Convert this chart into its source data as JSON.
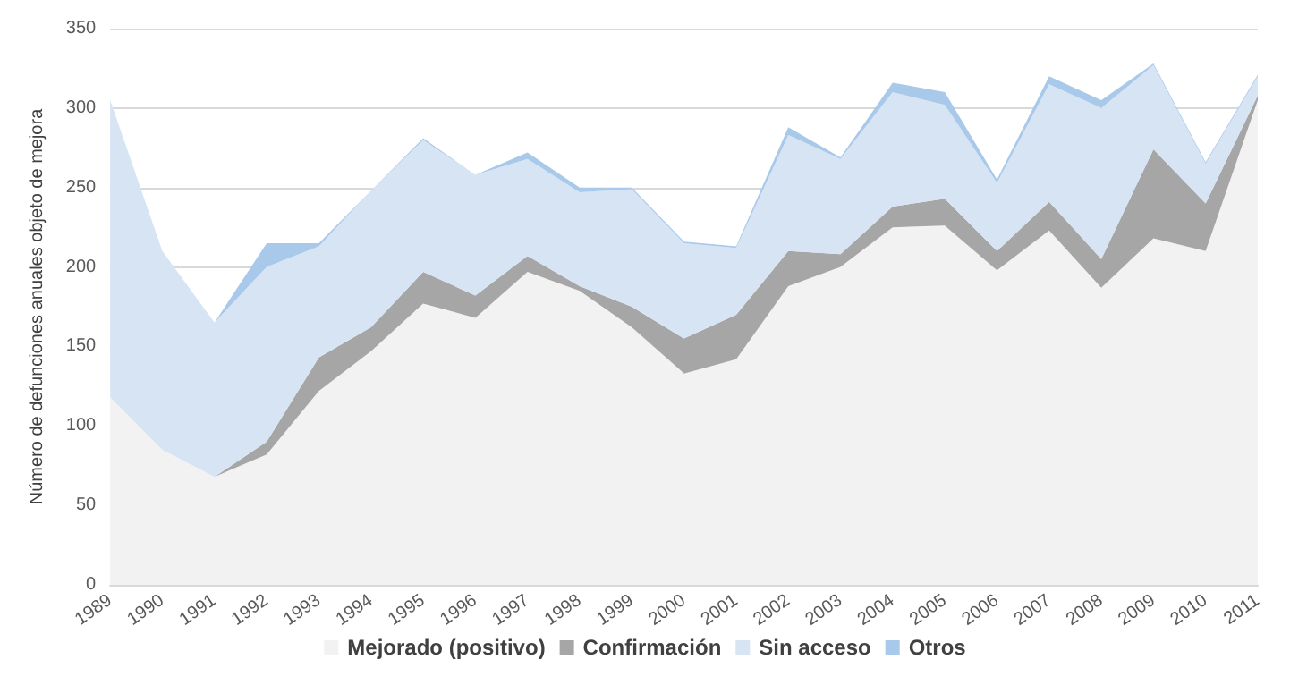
{
  "chart_data": {
    "type": "area",
    "stacked": true,
    "ylabel": "Número de defunciones anuales objeto de mejora",
    "categories": [
      "1989",
      "1990",
      "1991",
      "1992",
      "1993",
      "1994",
      "1995",
      "1996",
      "1997",
      "1998",
      "1999",
      "2000",
      "2001",
      "2002",
      "2003",
      "2004",
      "2005",
      "2006",
      "2007",
      "2008",
      "2009",
      "2010",
      "2011"
    ],
    "series": [
      {
        "name": "Mejorado (positivo)",
        "color": "#f2f2f2",
        "values": [
          118,
          85,
          68,
          82,
          122,
          147,
          177,
          168,
          197,
          185,
          162,
          133,
          142,
          188,
          200,
          225,
          226,
          198,
          223,
          187,
          218,
          210,
          305
        ]
      },
      {
        "name": "Confirmación",
        "color": "#a6a6a6",
        "values": [
          0,
          0,
          0,
          8,
          21,
          15,
          20,
          14,
          10,
          3,
          13,
          22,
          28,
          22,
          8,
          13,
          17,
          12,
          18,
          18,
          56,
          30,
          3
        ]
      },
      {
        "name": "Sin acceso",
        "color": "#d6e4f4",
        "values": [
          187,
          125,
          97,
          110,
          70,
          86,
          83,
          76,
          61,
          59,
          74,
          60,
          42,
          73,
          60,
          72,
          59,
          43,
          74,
          95,
          53,
          25,
          12
        ]
      },
      {
        "name": "Otros",
        "color": "#a9c9ea",
        "values": [
          0,
          0,
          0,
          15,
          2,
          0,
          1,
          0,
          4,
          3,
          1,
          1,
          1,
          5,
          1,
          6,
          8,
          2,
          5,
          5,
          1,
          1,
          1
        ]
      }
    ],
    "ylim": [
      0,
      350
    ],
    "yticks": [
      0,
      50,
      100,
      150,
      200,
      250,
      300,
      350
    ],
    "grid": "y",
    "legend": "bottom"
  }
}
